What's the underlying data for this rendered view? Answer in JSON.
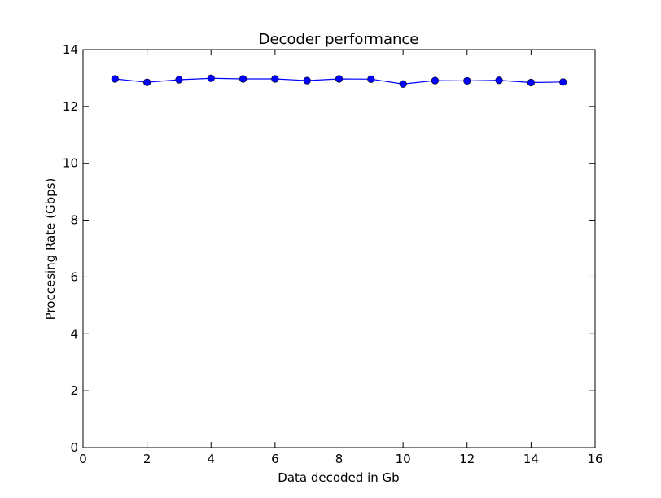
{
  "chart_data": {
    "type": "line",
    "title": "Decoder performance",
    "xlabel": "Data decoded in Gb",
    "ylabel": "Proccesing Rate (Gbps)",
    "xlim": [
      0,
      16
    ],
    "ylim": [
      0,
      14
    ],
    "xticks": [
      0,
      2,
      4,
      6,
      8,
      10,
      12,
      14,
      16
    ],
    "yticks": [
      0,
      2,
      4,
      6,
      8,
      10,
      12,
      14
    ],
    "grid": false,
    "series": [
      {
        "color": "#0000ff",
        "marker": "circle",
        "x": [
          1,
          2,
          3,
          4,
          5,
          6,
          7,
          8,
          9,
          10,
          11,
          12,
          13,
          14,
          15
        ],
        "y": [
          12.97,
          12.85,
          12.94,
          12.99,
          12.97,
          12.97,
          12.91,
          12.97,
          12.96,
          12.79,
          12.91,
          12.9,
          12.92,
          12.84,
          12.86
        ]
      }
    ]
  }
}
